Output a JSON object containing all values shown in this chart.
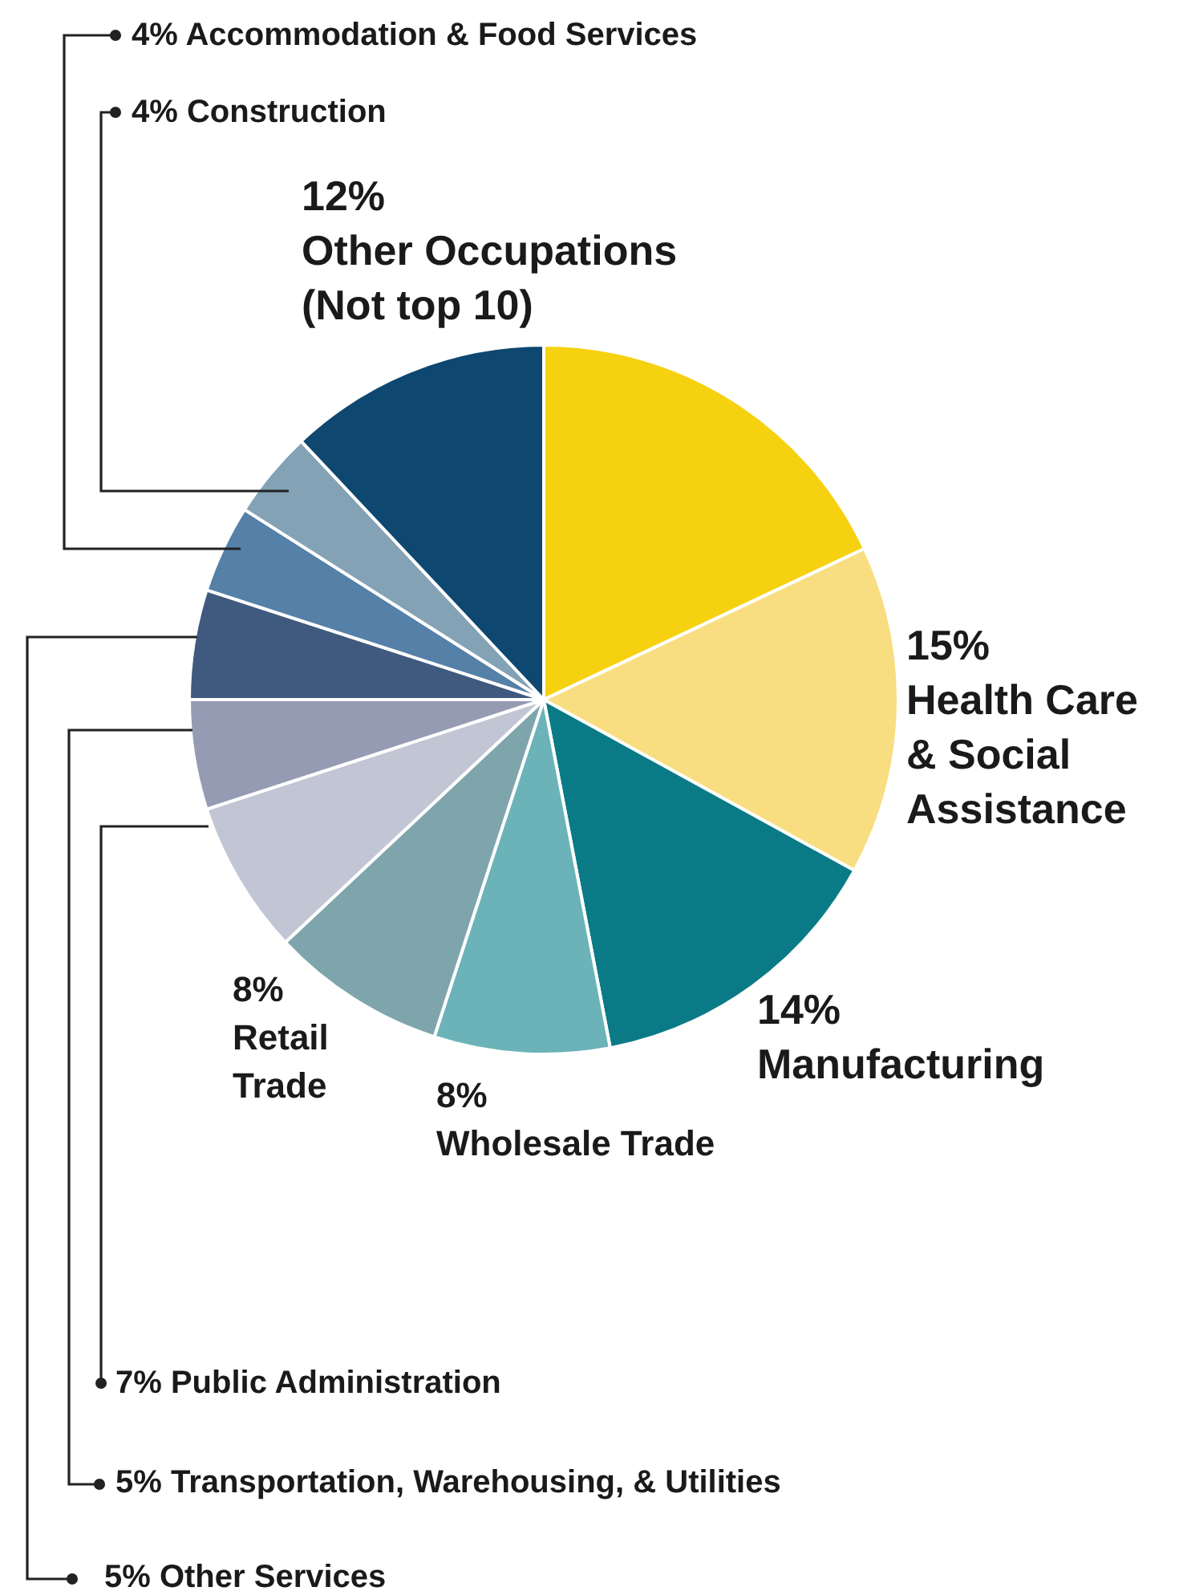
{
  "chart_data": {
    "type": "pie",
    "categories": [
      null,
      "Health Care & Social Assistance",
      "Manufacturing",
      "Wholesale Trade",
      "Retail Trade",
      "Public Administration",
      "Transportation, Warehousing, & Utilities",
      "Other Services",
      "Accommodation & Food Services",
      "Construction",
      "Other Occupations (Not top 10)"
    ],
    "values": [
      18,
      15,
      14,
      8,
      8,
      7,
      5,
      5,
      4,
      4,
      12
    ],
    "value_labels": [
      null,
      "15%",
      "14%",
      "8%",
      "8%",
      "7%",
      "5%",
      "5%",
      "4%",
      "4%",
      "12%"
    ],
    "colors": [
      "#f6d10f",
      "#f8de80",
      "#0a7b86",
      "#6bb3b8",
      "#7fa5ac",
      "#c2c5d4",
      "#969bb4",
      "#3f5a7e",
      "#5580a8",
      "#84a2b5",
      "#0e4770"
    ]
  }
}
